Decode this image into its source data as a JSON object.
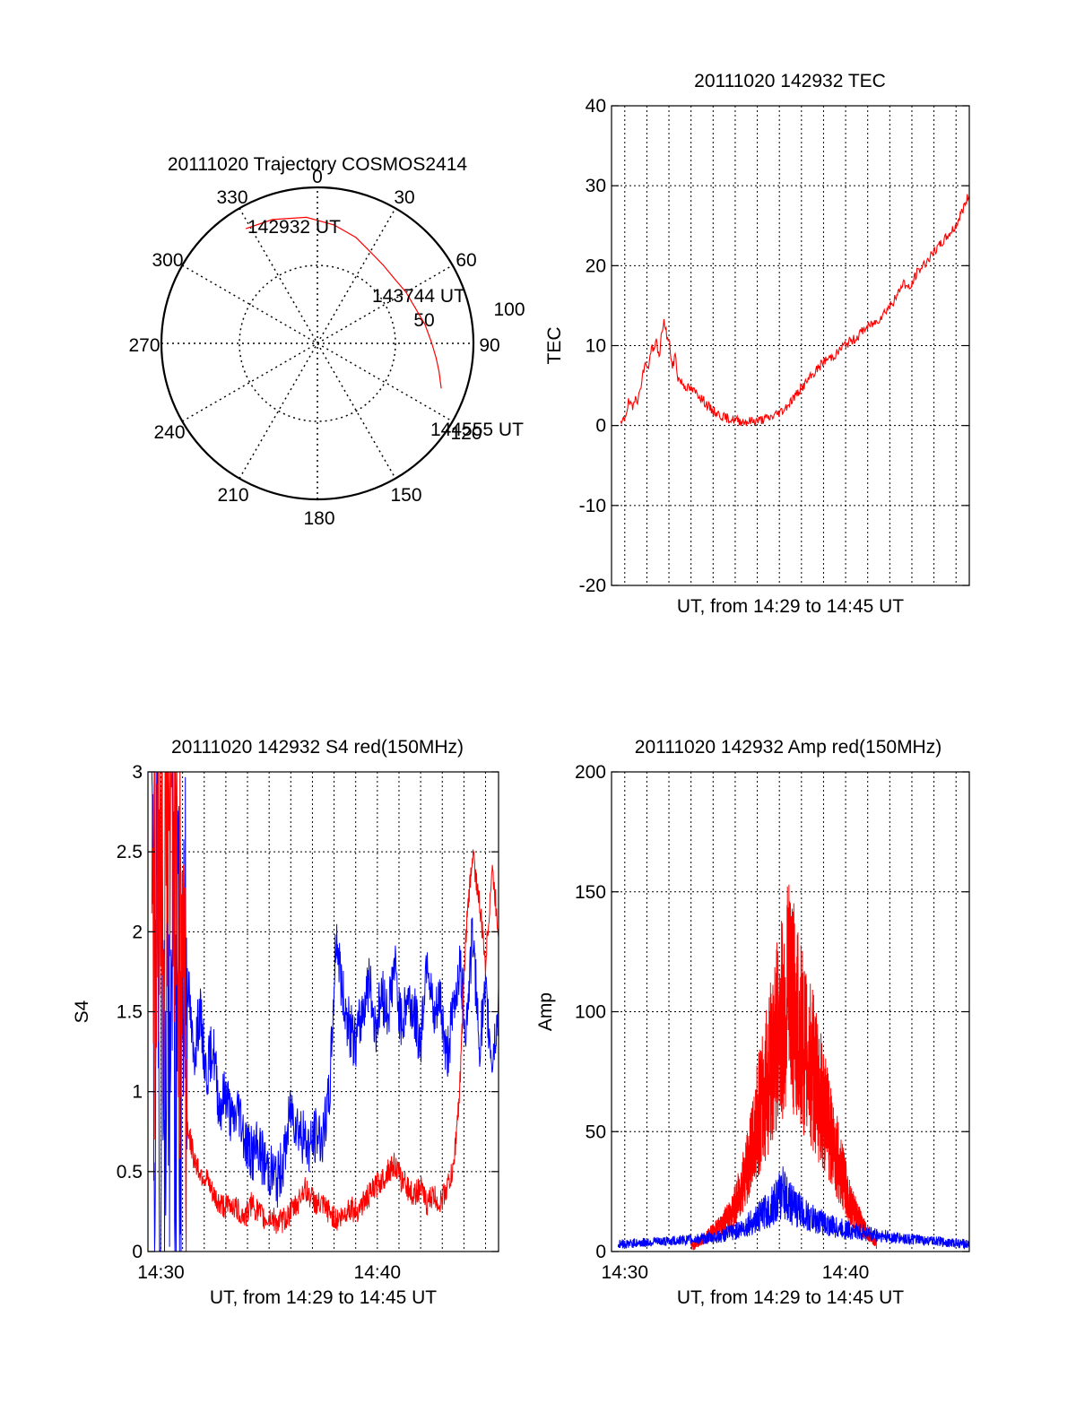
{
  "colors": {
    "red": "#ff0000",
    "blue": "#0000ff",
    "axis": "#000000",
    "grid": "#000000"
  },
  "chart_data": [
    {
      "type": "polar",
      "title": "20111020 Trajectory COSMOS2414",
      "azimuth_labels": [
        "0",
        "30",
        "60",
        "90",
        "120",
        "150",
        "180",
        "210",
        "240",
        "270",
        "300",
        "330"
      ],
      "radial_labels": [
        "50",
        "100"
      ],
      "elevation_range": [
        0,
        90
      ],
      "grid": true,
      "labels": [
        "142932 UT",
        "143744 UT",
        "144555 UT"
      ],
      "trajectory": {
        "color": "#ff0000",
        "points": [
          [
            -32,
            12
          ],
          [
            -20,
            14
          ],
          [
            -5,
            17
          ],
          [
            8,
            21
          ],
          [
            20,
            25
          ],
          [
            30,
            29
          ],
          [
            40,
            31
          ],
          [
            50,
            32
          ],
          [
            60,
            31
          ],
          [
            70,
            30
          ],
          [
            80,
            27
          ],
          [
            90,
            24
          ],
          [
            97,
            21
          ],
          [
            103,
            18
          ],
          [
            110,
            14
          ]
        ]
      }
    },
    {
      "type": "line",
      "title": "20111020 142932 TEC",
      "xlabel": "UT, from 14:29 to 14:45 UT",
      "ylabel": "TEC",
      "xlim": [
        14.49,
        14.76
      ],
      "ylim": [
        -20,
        40
      ],
      "yticks": [
        -20,
        -10,
        0,
        10,
        20,
        30,
        40
      ],
      "xticks": [],
      "grid": true,
      "series": [
        {
          "color": "#ff0000",
          "x": [
            14.497,
            14.5,
            14.503,
            14.506,
            14.508,
            14.51,
            14.513,
            14.516,
            14.518,
            14.52,
            14.522,
            14.524,
            14.526,
            14.528,
            14.53,
            14.532,
            14.534,
            14.536,
            14.538,
            14.54,
            14.545,
            14.55,
            14.555,
            14.56,
            14.565,
            14.57,
            14.575,
            14.58,
            14.59,
            14.6,
            14.61,
            14.62,
            14.625,
            14.63,
            14.64,
            14.65,
            14.66,
            14.665,
            14.67,
            14.675,
            14.68,
            14.69,
            14.7,
            14.705,
            14.71,
            14.715,
            14.72,
            14.725,
            14.73,
            14.735,
            14.74,
            14.745,
            14.75,
            14.755,
            14.76
          ],
          "values": [
            0,
            1,
            3,
            2,
            4,
            3,
            6,
            8,
            7,
            10,
            9,
            11,
            8,
            12,
            13,
            11,
            10,
            7,
            9,
            6,
            5,
            4.5,
            4,
            3,
            2,
            1.5,
            1,
            0.8,
            0.5,
            0.6,
            1,
            2,
            3,
            4,
            6,
            8,
            9,
            10,
            10.5,
            11,
            12,
            13,
            15,
            16,
            18,
            17,
            19,
            20,
            21,
            22,
            23,
            24,
            25,
            27,
            29
          ]
        }
      ]
    },
    {
      "type": "line",
      "title": "20111020 142932 S4 red(150MHz)",
      "xlabel": "UT, from 14:29 to 14:45 UT",
      "ylabel": "S4",
      "xlim": [
        14.49,
        14.76
      ],
      "ylim": [
        0,
        3
      ],
      "yticks": [
        "0",
        "0.5",
        "1",
        "1.5",
        "2",
        "2.5",
        "3"
      ],
      "xticks": [
        "14:30",
        "14:40"
      ],
      "grid": true,
      "series": [
        {
          "color": "#0000ff",
          "x": [
            14.493,
            14.495,
            14.497,
            14.499,
            14.501,
            14.503,
            14.505,
            14.507,
            14.509,
            14.511,
            14.513,
            14.515,
            14.517,
            14.52,
            14.525,
            14.53,
            14.535,
            14.54,
            14.545,
            14.55,
            14.555,
            14.56,
            14.565,
            14.57,
            14.575,
            14.58,
            14.585,
            14.59,
            14.595,
            14.6,
            14.605,
            14.61,
            14.615,
            14.62,
            14.625,
            14.63,
            14.635,
            14.64,
            14.645,
            14.65,
            14.655,
            14.66,
            14.665,
            14.67,
            14.675,
            14.68,
            14.685,
            14.69,
            14.695,
            14.7,
            14.705,
            14.71,
            14.715,
            14.72,
            14.725,
            14.73,
            14.735,
            14.74,
            14.745,
            14.75,
            14.755,
            14.76
          ],
          "values": [
            3,
            0.5,
            2.8,
            0,
            3,
            0.2,
            2.5,
            0,
            3,
            0.3,
            2.6,
            0,
            2.2,
            1.8,
            1.2,
            1.5,
            1.1,
            1.3,
            0.9,
            1.0,
            0.8,
            0.9,
            0.7,
            0.6,
            0.65,
            0.55,
            0.5,
            0.45,
            0.6,
            0.9,
            0.8,
            0.7,
            0.65,
            0.75,
            0.7,
            1.0,
            2.0,
            1.6,
            1.4,
            1.3,
            1.5,
            1.7,
            1.4,
            1.6,
            1.5,
            1.8,
            1.4,
            1.6,
            1.5,
            1.3,
            1.9,
            1.4,
            1.6,
            1.2,
            1.5,
            1.8,
            1.4,
            2.0,
            1.3,
            1.6,
            1.2,
            1.5
          ]
        },
        {
          "color": "#ff0000",
          "x": [
            14.493,
            14.496,
            14.499,
            14.502,
            14.505,
            14.508,
            14.511,
            14.514,
            14.517,
            14.52,
            14.525,
            14.53,
            14.535,
            14.54,
            14.545,
            14.55,
            14.555,
            14.56,
            14.565,
            14.57,
            14.575,
            14.58,
            14.585,
            14.59,
            14.595,
            14.6,
            14.605,
            14.61,
            14.615,
            14.62,
            14.625,
            14.63,
            14.635,
            14.64,
            14.645,
            14.65,
            14.655,
            14.66,
            14.665,
            14.67,
            14.675,
            14.68,
            14.685,
            14.69,
            14.695,
            14.7,
            14.705,
            14.71,
            14.715,
            14.72,
            14.725,
            14.73,
            14.735,
            14.74,
            14.745,
            14.75,
            14.755,
            14.76
          ],
          "values": [
            3,
            1.5,
            3,
            2,
            3,
            2.5,
            3,
            1.8,
            2.2,
            0.8,
            0.6,
            0.5,
            0.45,
            0.35,
            0.3,
            0.28,
            0.3,
            0.25,
            0.22,
            0.3,
            0.25,
            0.2,
            0.22,
            0.18,
            0.2,
            0.25,
            0.3,
            0.4,
            0.35,
            0.3,
            0.28,
            0.25,
            0.2,
            0.22,
            0.28,
            0.25,
            0.3,
            0.35,
            0.4,
            0.45,
            0.5,
            0.55,
            0.45,
            0.4,
            0.35,
            0.4,
            0.3,
            0.35,
            0.3,
            0.4,
            0.5,
            1.0,
            2.0,
            2.5,
            2.2,
            1.8,
            2.4,
            2.0
          ]
        }
      ]
    },
    {
      "type": "line",
      "title": "20111020 142932 Amp red(150MHz)",
      "xlabel": "UT, from 14:29 to 14:45 UT",
      "ylabel": "Amp",
      "xlim": [
        14.49,
        14.76
      ],
      "ylim": [
        0,
        200
      ],
      "yticks": [
        "0",
        "50",
        "100",
        "150",
        "200"
      ],
      "xticks": [
        "14:30",
        "14:40"
      ],
      "grid": true,
      "series": [
        {
          "color": "#ff0000",
          "x": [
            14.55,
            14.56,
            14.57,
            14.58,
            14.585,
            14.59,
            14.595,
            14.6,
            14.605,
            14.61,
            14.615,
            14.62,
            14.625,
            14.63,
            14.635,
            14.64,
            14.645,
            14.65,
            14.655,
            14.66,
            14.665,
            14.67,
            14.68,
            14.69
          ],
          "values": [
            2,
            5,
            10,
            15,
            22,
            30,
            40,
            55,
            65,
            78,
            90,
            100,
            110,
            95,
            85,
            80,
            70,
            60,
            50,
            40,
            30,
            20,
            10,
            3
          ]
        },
        {
          "color": "#0000ff",
          "x": [
            14.495,
            14.52,
            14.55,
            14.57,
            14.59,
            14.6,
            14.61,
            14.615,
            14.62,
            14.625,
            14.63,
            14.64,
            14.65,
            14.66,
            14.68,
            14.7,
            14.72,
            14.74,
            14.76
          ],
          "values": [
            3,
            4,
            5,
            6,
            10,
            14,
            18,
            22,
            25,
            20,
            18,
            14,
            12,
            10,
            8,
            6,
            5,
            4,
            3
          ]
        }
      ]
    }
  ]
}
